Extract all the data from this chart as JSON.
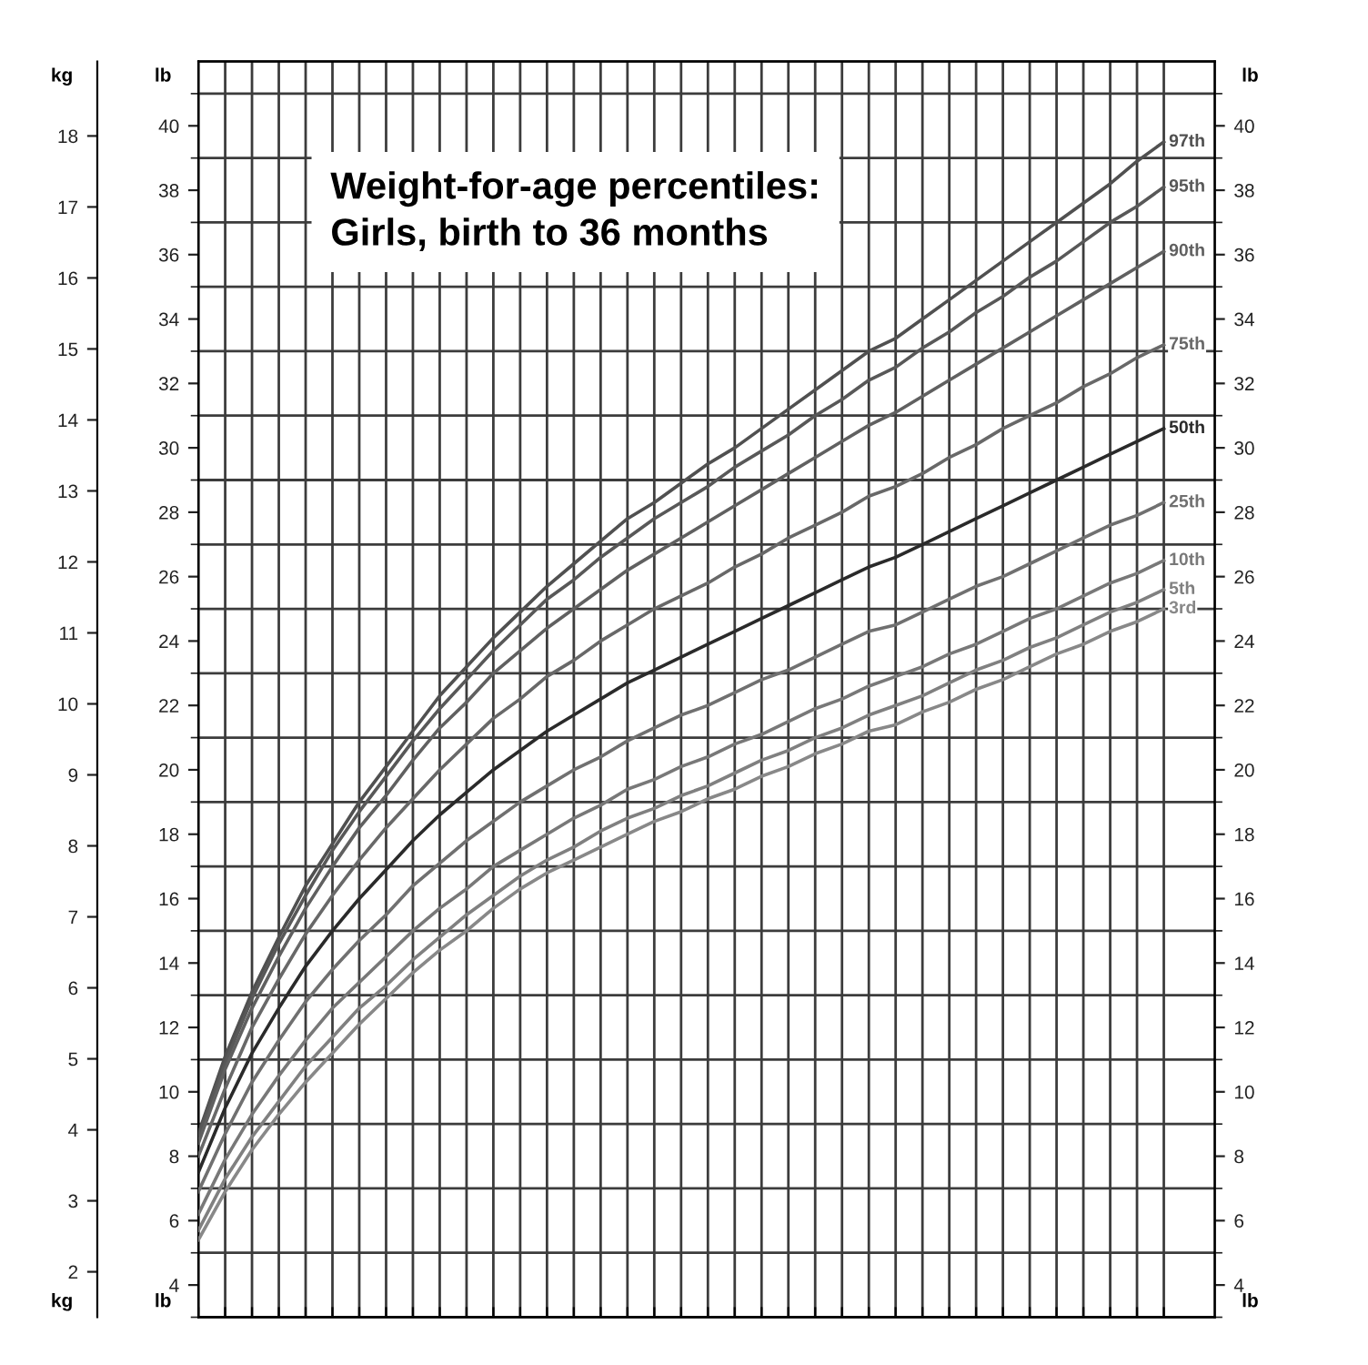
{
  "chart_data": {
    "type": "line",
    "title": "Weight-for-age percentiles:\nGirls, birth to 36 months",
    "categories": [
      null,
      null,
      null,
      null,
      null,
      null,
      null,
      null,
      null,
      null,
      null,
      null,
      null,
      null,
      null,
      null,
      null,
      null,
      null,
      null,
      null,
      null,
      null,
      null,
      null,
      null,
      null,
      null,
      null,
      null,
      null,
      null,
      null,
      null,
      null,
      null,
      null
    ],
    "series": [
      {
        "name": "97th",
        "color": "#505050",
        "axis": "y2",
        "values": [
          8.7,
          11.1,
          13.1,
          14.8,
          16.4,
          17.7,
          19.0,
          20.1,
          21.2,
          22.3,
          23.2,
          24.1,
          24.9,
          25.7,
          26.4,
          27.1,
          27.8,
          28.3,
          28.9,
          29.5,
          30.0,
          30.6,
          31.2,
          31.8,
          32.4,
          33.0,
          33.4,
          34.0,
          34.6,
          35.2,
          35.8,
          36.4,
          37.0,
          37.6,
          38.2,
          38.9,
          39.5
        ]
      },
      {
        "name": "95th",
        "color": "#585858",
        "axis": "y2",
        "values": [
          8.6,
          10.9,
          12.9,
          14.6,
          16.1,
          17.5,
          18.7,
          19.8,
          20.9,
          21.9,
          22.8,
          23.7,
          24.5,
          25.3,
          25.9,
          26.6,
          27.2,
          27.8,
          28.3,
          28.8,
          29.4,
          29.9,
          30.4,
          31.0,
          31.5,
          32.1,
          32.5,
          33.1,
          33.6,
          34.2,
          34.7,
          35.3,
          35.8,
          36.4,
          37.0,
          37.5,
          38.1
        ]
      },
      {
        "name": "90th",
        "color": "#606060",
        "axis": "y2",
        "values": [
          8.4,
          10.7,
          12.6,
          14.2,
          15.7,
          17.0,
          18.2,
          19.2,
          20.3,
          21.3,
          22.1,
          23.0,
          23.7,
          24.4,
          25.0,
          25.6,
          26.2,
          26.7,
          27.2,
          27.7,
          28.2,
          28.7,
          29.2,
          29.7,
          30.2,
          30.7,
          31.1,
          31.6,
          32.1,
          32.6,
          33.1,
          33.6,
          34.1,
          34.6,
          35.1,
          35.6,
          36.1
        ]
      },
      {
        "name": "75th",
        "color": "#686868",
        "axis": "y2",
        "values": [
          8.0,
          10.1,
          12.0,
          13.5,
          14.9,
          16.1,
          17.2,
          18.2,
          19.1,
          20.0,
          20.8,
          21.6,
          22.2,
          22.9,
          23.4,
          24.0,
          24.5,
          25.0,
          25.4,
          25.8,
          26.3,
          26.7,
          27.2,
          27.6,
          28.0,
          28.5,
          28.8,
          29.2,
          29.7,
          30.1,
          30.6,
          31.0,
          31.4,
          31.9,
          32.3,
          32.8,
          33.2
        ]
      },
      {
        "name": "50th",
        "color": "#2a2a2a",
        "axis": "y2",
        "values": [
          7.5,
          9.5,
          11.2,
          12.6,
          13.9,
          15.0,
          16.0,
          16.9,
          17.8,
          18.6,
          19.3,
          20.0,
          20.6,
          21.2,
          21.7,
          22.2,
          22.7,
          23.1,
          23.5,
          23.9,
          24.3,
          24.7,
          25.1,
          25.5,
          25.9,
          26.3,
          26.6,
          27.0,
          27.4,
          27.8,
          28.2,
          28.6,
          29.0,
          29.4,
          29.8,
          30.2,
          30.6
        ]
      },
      {
        "name": "25th",
        "color": "#707070",
        "axis": "y2",
        "values": [
          6.9,
          8.7,
          10.3,
          11.6,
          12.8,
          13.8,
          14.7,
          15.5,
          16.4,
          17.1,
          17.8,
          18.4,
          19.0,
          19.5,
          20.0,
          20.4,
          20.9,
          21.3,
          21.7,
          22.0,
          22.4,
          22.8,
          23.1,
          23.5,
          23.9,
          24.3,
          24.5,
          24.9,
          25.3,
          25.7,
          26.0,
          26.4,
          26.8,
          27.2,
          27.6,
          27.9,
          28.3
        ]
      },
      {
        "name": "10th",
        "color": "#787878",
        "axis": "y2",
        "values": [
          6.2,
          7.9,
          9.3,
          10.5,
          11.6,
          12.6,
          13.4,
          14.2,
          15.0,
          15.7,
          16.3,
          17.0,
          17.5,
          18.0,
          18.5,
          18.9,
          19.4,
          19.7,
          20.1,
          20.4,
          20.8,
          21.1,
          21.5,
          21.9,
          22.2,
          22.6,
          22.9,
          23.2,
          23.6,
          23.9,
          24.3,
          24.7,
          25.0,
          25.4,
          25.8,
          26.1,
          26.5
        ]
      },
      {
        "name": "5th",
        "color": "#808080",
        "axis": "y2",
        "values": [
          5.7,
          7.3,
          8.6,
          9.7,
          10.8,
          11.7,
          12.6,
          13.3,
          14.1,
          14.8,
          15.5,
          16.1,
          16.7,
          17.2,
          17.6,
          18.1,
          18.5,
          18.8,
          19.2,
          19.5,
          19.9,
          20.3,
          20.6,
          21.0,
          21.3,
          21.7,
          22.0,
          22.3,
          22.7,
          23.1,
          23.4,
          23.8,
          24.1,
          24.5,
          24.9,
          25.2,
          25.6
        ]
      },
      {
        "name": "3rd",
        "color": "#888888",
        "axis": "y2",
        "values": [
          5.4,
          6.9,
          8.2,
          9.3,
          10.3,
          11.2,
          12.1,
          12.9,
          13.7,
          14.4,
          15.0,
          15.7,
          16.3,
          16.8,
          17.2,
          17.6,
          18.0,
          18.4,
          18.7,
          19.1,
          19.4,
          19.8,
          20.1,
          20.5,
          20.8,
          21.2,
          21.4,
          21.8,
          22.1,
          22.5,
          22.8,
          23.2,
          23.6,
          23.9,
          24.3,
          24.6,
          25.0
        ]
      }
    ],
    "y3label": "kg",
    "y3lim": [
      1.36,
      19.05
    ],
    "y3ticks": [
      2,
      3,
      4,
      5,
      6,
      7,
      8,
      9,
      10,
      11,
      12,
      13,
      14,
      15,
      16,
      17,
      18
    ],
    "y2label": "lb",
    "y2lim": [
      3,
      42
    ],
    "y2ticks": [
      {
        "value": 3,
        "label": null
      },
      4,
      {
        "value": 5,
        "label": null
      },
      6,
      {
        "value": 7,
        "label": null
      },
      8,
      {
        "value": 9,
        "label": null
      },
      10,
      {
        "value": 11,
        "label": null
      },
      12,
      {
        "value": 13,
        "label": null
      },
      14,
      {
        "value": 15,
        "label": null
      },
      16,
      {
        "value": 17,
        "label": null
      },
      18,
      {
        "value": 19,
        "label": null
      },
      20,
      {
        "value": 21,
        "label": null
      },
      22,
      {
        "value": 23,
        "label": null
      },
      24,
      {
        "value": 25,
        "label": null
      },
      26,
      {
        "value": 27,
        "label": null
      },
      28,
      {
        "value": 29,
        "label": null
      },
      30,
      {
        "value": 31,
        "label": null
      },
      32,
      {
        "value": 33,
        "label": null
      },
      34,
      {
        "value": 35,
        "label": null
      },
      36,
      {
        "value": 37,
        "label": null
      },
      38,
      {
        "value": 39,
        "label": null
      },
      40,
      {
        "value": 41,
        "label": null
      }
    ],
    "ylabel": "lb",
    "ylim": [
      3,
      42
    ],
    "yticks": [
      {
        "value": 3,
        "label": null
      },
      4,
      {
        "value": 5,
        "label": null
      },
      6,
      {
        "value": 7,
        "label": null
      },
      8,
      {
        "value": 9,
        "label": null
      },
      10,
      {
        "value": 11,
        "label": null
      },
      12,
      {
        "value": 13,
        "label": null
      },
      14,
      {
        "value": 15,
        "label": null
      },
      16,
      {
        "value": 17,
        "label": null
      },
      18,
      {
        "value": 19,
        "label": null
      },
      20,
      {
        "value": 21,
        "label": null
      },
      22,
      {
        "value": 23,
        "label": null
      },
      24,
      {
        "value": 25,
        "label": null
      },
      26,
      {
        "value": 27,
        "label": null
      },
      28,
      {
        "value": 29,
        "label": null
      },
      30,
      {
        "value": 31,
        "label": null
      },
      32,
      {
        "value": 33,
        "label": null
      },
      34,
      {
        "value": 35,
        "label": null
      },
      36,
      {
        "value": 37,
        "label": null
      },
      38,
      {
        "value": 39,
        "label": null
      },
      40,
      {
        "value": 41,
        "label": null
      }
    ],
    "grid": true,
    "marker": "none",
    "line_style": "solid",
    "legend": "right",
    "tick_labels": "y"
  }
}
